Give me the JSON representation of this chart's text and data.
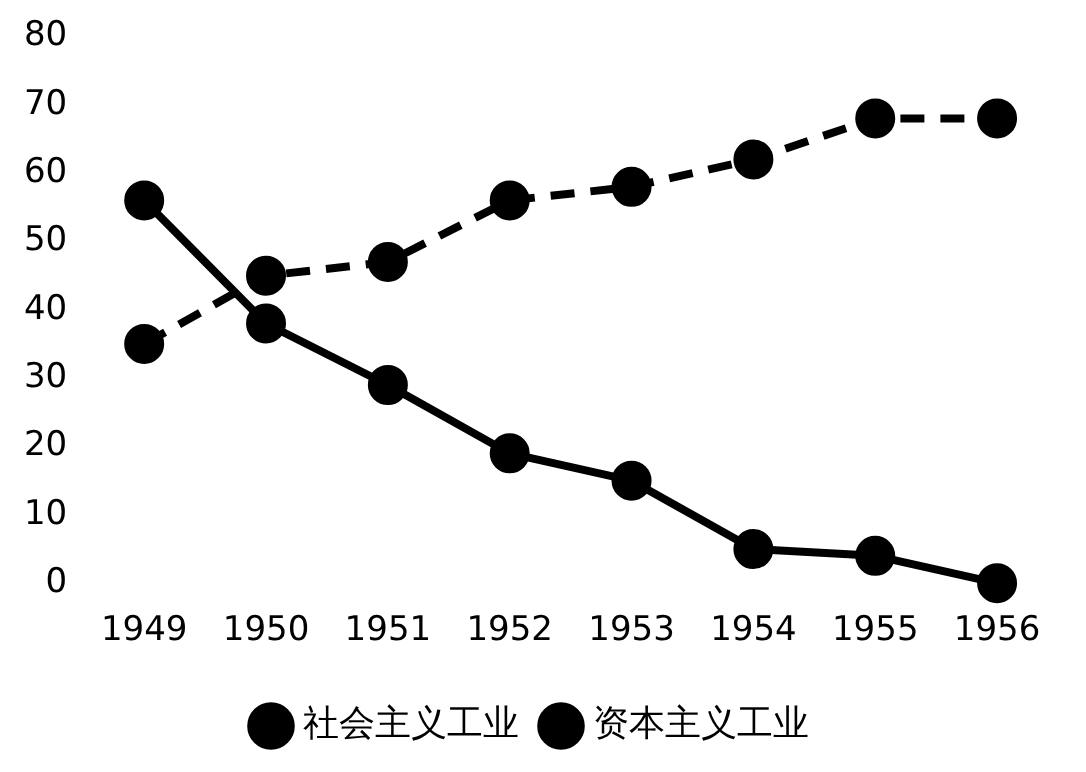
{
  "chart_data": {
    "type": "line",
    "categories": [
      "1949",
      "1950",
      "1951",
      "1952",
      "1953",
      "1954",
      "1955",
      "1956"
    ],
    "series": [
      {
        "name": "社会主义工业",
        "color": "#000000",
        "line_style": "dashed",
        "values": [
          35,
          45,
          47,
          56,
          58,
          62,
          68,
          68
        ]
      },
      {
        "name": "资本主义工业",
        "color": "#000000",
        "line_style": "solid",
        "values": [
          56,
          38,
          29,
          19,
          15,
          5,
          4,
          0
        ]
      }
    ],
    "ylim": [
      0,
      80
    ],
    "yticks": [
      0,
      10,
      20,
      30,
      40,
      50,
      60,
      70,
      80
    ],
    "grid": false,
    "legend": "bottom",
    "marker": "circle"
  }
}
